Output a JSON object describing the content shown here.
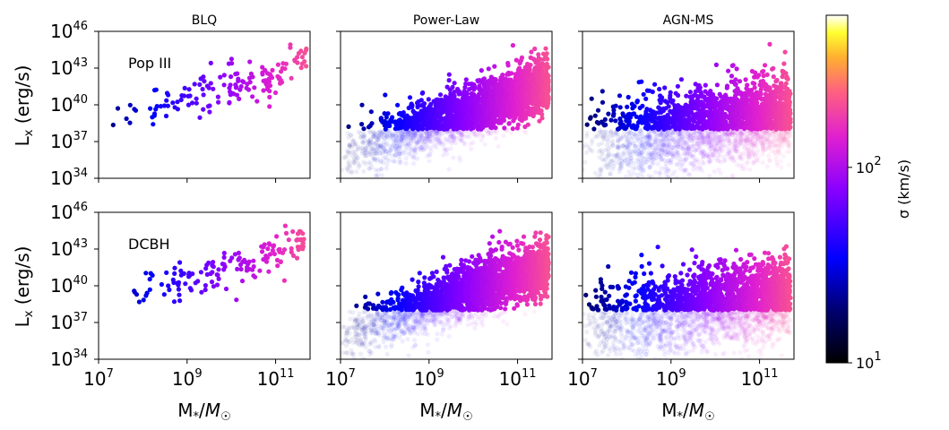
{
  "chart_data": {
    "type": "scatter",
    "layout": "2x3 grid of log-log scatter panels with shared axes and a colorbar",
    "columns": [
      "BLQ",
      "Power-Law",
      "AGN-MS"
    ],
    "rows": [
      "Pop III",
      "DCBH"
    ],
    "xlabel": "M*/M☉",
    "ylabel": "Lx (erg/s)",
    "xscale": "log",
    "yscale": "log",
    "xlim": [
      10000000.0,
      600000000000.0
    ],
    "ylim": [
      1e+34,
      1e+46
    ],
    "xticks": [
      {
        "base": "10",
        "exp": "7"
      },
      {
        "base": "10",
        "exp": "9"
      },
      {
        "base": "10",
        "exp": "11"
      }
    ],
    "yticks": [
      {
        "base": "10",
        "exp": "34"
      },
      {
        "base": "10",
        "exp": "37"
      },
      {
        "base": "10",
        "exp": "40"
      },
      {
        "base": "10",
        "exp": "43"
      },
      {
        "base": "10",
        "exp": "46"
      }
    ],
    "colorbar": {
      "label": "σ (km/s)",
      "colormap": "gnuplot2",
      "scale": "log",
      "range": [
        10,
        600
      ],
      "ticks": [
        {
          "base": "10",
          "exp": "1",
          "value": 10
        },
        {
          "base": "10",
          "exp": "2",
          "value": 100
        }
      ]
    },
    "detection_threshold_log_Lx": 38,
    "series_description": "Each panel plots seed black hole X-ray luminosity vs host stellar mass; points colored by velocity dispersion σ; faint points fall below the X-ray detection threshold.",
    "panels": [
      {
        "row": "Pop III",
        "column": "BLQ",
        "n_points": 150,
        "log_mass_range": [
          7.0,
          11.7
        ],
        "faint_points": false
      },
      {
        "row": "Pop III",
        "column": "Power-Law",
        "n_points": 5000,
        "log_mass_range": [
          7.0,
          11.7
        ],
        "faint_points": true
      },
      {
        "row": "Pop III",
        "column": "AGN-MS",
        "n_points": 5000,
        "log_mass_range": [
          7.0,
          11.7
        ],
        "faint_points": true
      },
      {
        "row": "DCBH",
        "column": "BLQ",
        "n_points": 150,
        "log_mass_range": [
          7.5,
          11.7
        ],
        "faint_points": false
      },
      {
        "row": "DCBH",
        "column": "Power-Law",
        "n_points": 5000,
        "log_mass_range": [
          7.0,
          11.7
        ],
        "faint_points": true
      },
      {
        "row": "DCBH",
        "column": "AGN-MS",
        "n_points": 5000,
        "log_mass_range": [
          7.0,
          11.7
        ],
        "faint_points": true
      }
    ]
  }
}
